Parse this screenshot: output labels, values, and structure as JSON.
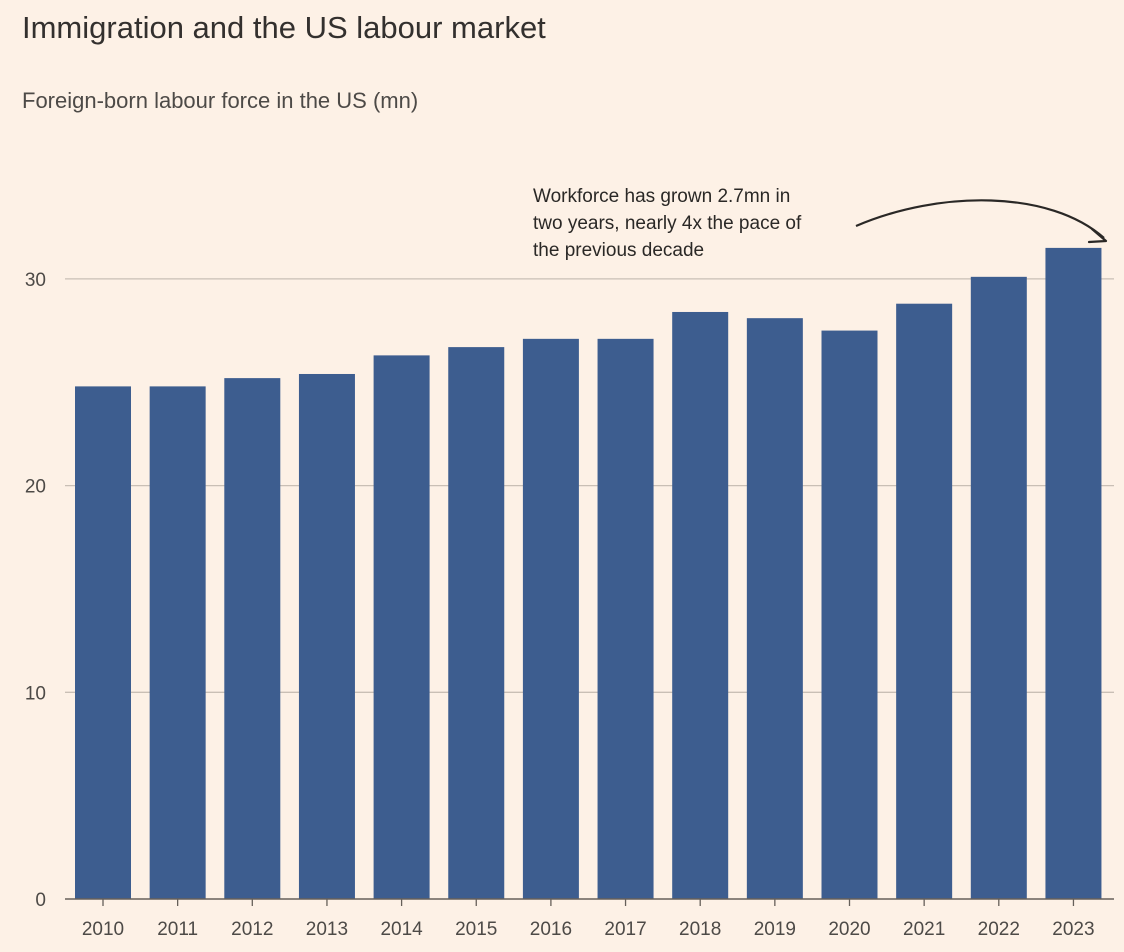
{
  "title": "Immigration and the US labour market",
  "subtitle": "Foreign-born labour force in the US (mn)",
  "annotation": {
    "lines": [
      "Workforce has grown 2.7mn in",
      "two years, nearly 4x the pace of",
      "the previous decade"
    ]
  },
  "colors": {
    "bar": "#3d5d8f",
    "background": "#fdf1e6",
    "gridline": "#c9bfb5",
    "axis": "#66605a"
  },
  "chart_data": {
    "type": "bar",
    "title": "Immigration and the US labour market",
    "subtitle": "Foreign-born labour force in the US (mn)",
    "xlabel": "",
    "ylabel": "Foreign-born labour force in the US (mn)",
    "categories": [
      "2010",
      "2011",
      "2012",
      "2013",
      "2014",
      "2015",
      "2016",
      "2017",
      "2018",
      "2019",
      "2020",
      "2021",
      "2022",
      "2023"
    ],
    "values": [
      24.8,
      24.8,
      25.2,
      25.4,
      26.3,
      26.7,
      27.1,
      27.1,
      28.4,
      28.1,
      27.5,
      28.8,
      30.1,
      31.5
    ],
    "ylim": [
      0,
      35
    ],
    "yticks": [
      0,
      10,
      20,
      30
    ],
    "grid": true,
    "legend": "none",
    "annotation_target": "2023"
  }
}
